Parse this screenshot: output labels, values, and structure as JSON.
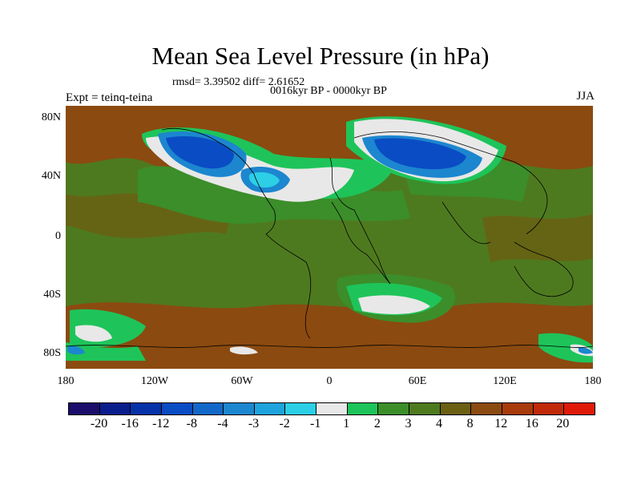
{
  "title": "Mean Sea Level Pressure (in hPa)",
  "stats": "rmsd= 3.39502  diff= 2.61652",
  "subtitle": "0016kyr BP - 0000kyr BP",
  "expt": "Expt = teinq-teina",
  "season": "JJA",
  "y_ticks": [
    "80N",
    "40N",
    "0",
    "40S",
    "80S"
  ],
  "x_ticks": [
    "180",
    "120W",
    "60W",
    "0",
    "60E",
    "120E",
    "180"
  ],
  "colorbar": {
    "colors": [
      "#1a0d6b",
      "#0a1d8c",
      "#0532a8",
      "#0a4cc4",
      "#1268c8",
      "#1c86cf",
      "#1fa3dc",
      "#2ccfe6",
      "#e8e8e8",
      "#1ec45a",
      "#3b8e2a",
      "#4e7a1f",
      "#6b5f12",
      "#8b4a10",
      "#a83a0c",
      "#c02a0a",
      "#e01a08"
    ],
    "labels": [
      "-20",
      "-16",
      "-12",
      "-8",
      "-4",
      "-3",
      "-2",
      "-1",
      "1",
      "2",
      "3",
      "4",
      "8",
      "12",
      "16",
      "20"
    ]
  },
  "colors": {
    "background_field": "#4e7a1f",
    "brown": "#8b4a10",
    "green": "#3b8e2a",
    "bright_green": "#1ec45a",
    "white": "#e8e8e8",
    "blue_dark": "#0a4cc4",
    "blue_mid": "#1c86cf",
    "cyan": "#2ccfe6"
  }
}
